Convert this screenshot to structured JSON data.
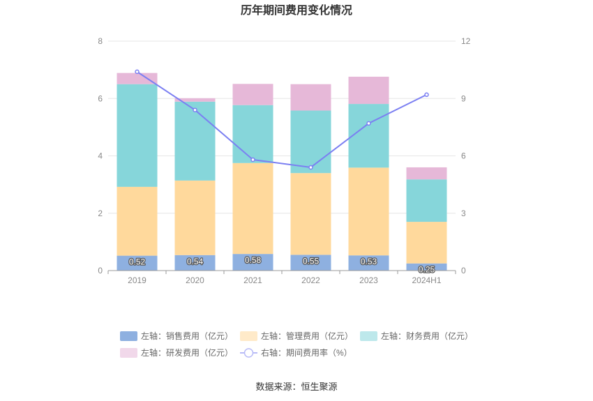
{
  "chart_data": {
    "type": "bar",
    "stacked": true,
    "title": "历年期间费用变化情况",
    "categories": [
      "2019",
      "2020",
      "2021",
      "2022",
      "2023",
      "2024H1"
    ],
    "y_left": {
      "min": 0,
      "max": 8,
      "ticks": [
        "0",
        "2",
        "4",
        "6",
        "8"
      ]
    },
    "y_right": {
      "min": 0,
      "max": 12,
      "ticks": [
        "0",
        "3",
        "6",
        "9",
        "12"
      ]
    },
    "grid": true,
    "legend_position": "bottom",
    "series": [
      {
        "name": "左轴：销售费用（亿元）",
        "axis": "left",
        "kind": "bar",
        "color": "#8eb0e0",
        "values": [
          0.52,
          0.54,
          0.58,
          0.55,
          0.53,
          0.25
        ],
        "labels": [
          "0.52",
          "0.54",
          "0.58",
          "0.55",
          "0.53",
          "0.25"
        ]
      },
      {
        "name": "左轴：管理费用（亿元）",
        "axis": "left",
        "kind": "bar",
        "color": "#ffd99c",
        "values": [
          2.4,
          2.6,
          3.17,
          2.85,
          3.06,
          1.45
        ]
      },
      {
        "name": "左轴：财务费用（亿元）",
        "axis": "left",
        "kind": "bar",
        "color": "#86d6da",
        "values": [
          3.58,
          2.75,
          2.02,
          2.18,
          2.22,
          1.48
        ]
      },
      {
        "name": "左轴：研发费用（亿元）",
        "axis": "left",
        "kind": "bar",
        "color": "#e6b8d8",
        "values": [
          0.39,
          0.12,
          0.74,
          0.92,
          0.95,
          0.42
        ]
      },
      {
        "name": "右轴：期间费用率（%）",
        "axis": "right",
        "kind": "line",
        "color": "#7b7ff2",
        "values": [
          10.4,
          8.4,
          5.8,
          5.4,
          7.7,
          9.2
        ]
      }
    ],
    "source": "数据来源：恒生聚源"
  }
}
